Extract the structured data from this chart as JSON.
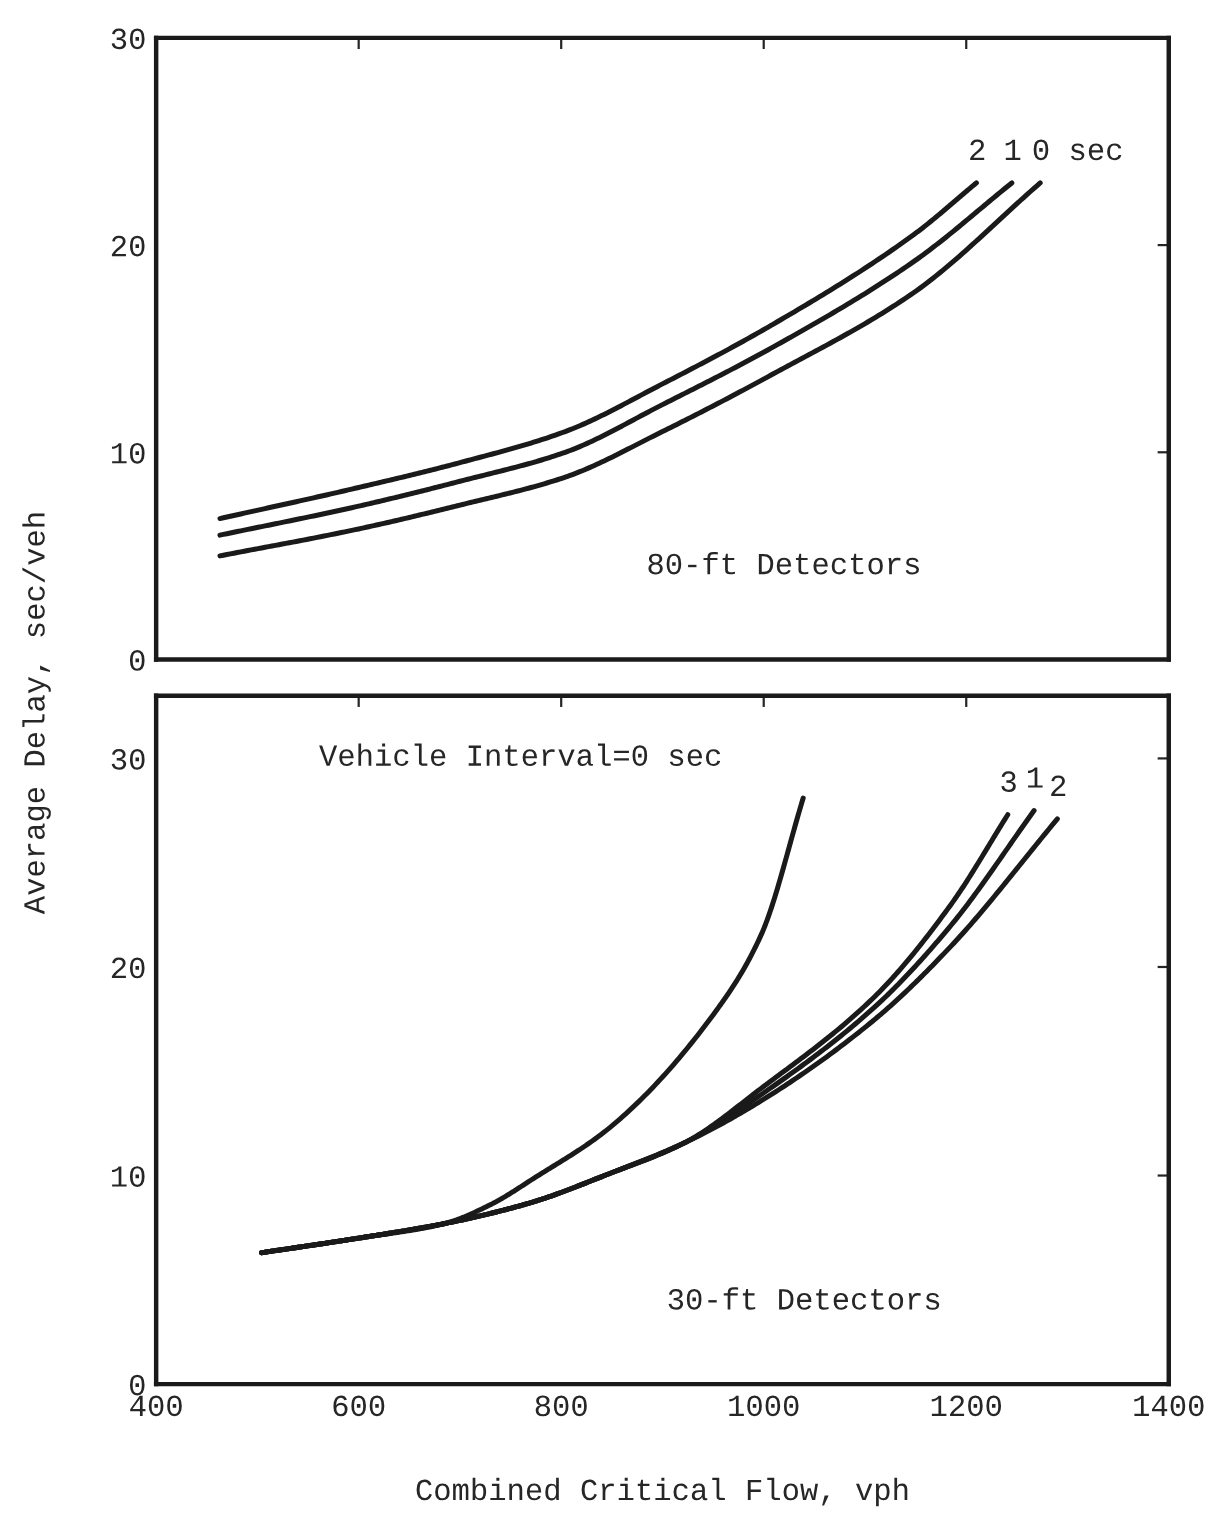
{
  "chart_data": [
    {
      "type": "line",
      "xlim": [
        400,
        1400
      ],
      "xticks": [
        400,
        600,
        800,
        1000,
        1200,
        1400
      ],
      "ylim": [
        0,
        30
      ],
      "yticks": [
        0,
        10,
        20,
        30
      ],
      "tick_labels": "y",
      "grid": false,
      "legend": false,
      "marker": "none",
      "line_style": "solid",
      "annotations": [
        "80-ft Detectors"
      ],
      "series": [
        {
          "name": "2",
          "color": "#1a1a1a",
          "x": [
            463,
            600,
            700,
            804,
            900,
            1010,
            1148,
            1210
          ],
          "values": [
            6.8,
            8.3,
            9.5,
            11.0,
            13.3,
            16.2,
            20.5,
            23.0
          ]
        },
        {
          "name": "1",
          "color": "#1a1a1a",
          "x": [
            463,
            600,
            700,
            804,
            900,
            1010,
            1148,
            1245
          ],
          "values": [
            6.0,
            7.4,
            8.6,
            10.0,
            12.3,
            15.1,
            19.2,
            23.0
          ]
        },
        {
          "name": "0 sec",
          "color": "#1a1a1a",
          "x": [
            463,
            600,
            700,
            804,
            900,
            1010,
            1148,
            1273
          ],
          "values": [
            5.0,
            6.3,
            7.45,
            8.8,
            11.0,
            13.8,
            17.7,
            23.0
          ]
        }
      ]
    },
    {
      "type": "line",
      "xlim": [
        400,
        1400
      ],
      "xticks": [
        400,
        600,
        800,
        1000,
        1200,
        1400
      ],
      "ylim": [
        0,
        33
      ],
      "yticks": [
        0,
        10,
        20,
        30
      ],
      "grid": false,
      "legend": false,
      "marker": "none",
      "line_style": "solid",
      "xlabel": "Combined Critical Flow, vph",
      "ylabel": "Average Delay, sec/veh",
      "annotations": [
        "Vehicle Interval=0 sec",
        "30-ft Detectors"
      ],
      "series": [
        {
          "color": "#1a1a1a",
          "x": [
            504,
            600,
            685,
            730,
            774,
            848,
            953,
            998,
            1039
          ],
          "values": [
            6.3,
            7.0,
            7.7,
            8.6,
            9.9,
            12.3,
            17.9,
            21.6,
            28.1
          ]
        },
        {
          "name": "3",
          "color": "#1a1a1a",
          "x": [
            504,
            600,
            685,
            770,
            848,
            923,
            998,
            1110,
            1185,
            1241
          ],
          "values": [
            6.3,
            7.0,
            7.7,
            8.7,
            10.1,
            11.6,
            14.2,
            18.6,
            23.0,
            27.3
          ]
        },
        {
          "name": "1",
          "color": "#1a1a1a",
          "x": [
            504,
            600,
            685,
            770,
            848,
            923,
            998,
            1110,
            1185,
            1267
          ],
          "values": [
            6.3,
            7.0,
            7.7,
            8.7,
            10.1,
            11.6,
            13.9,
            18.1,
            22.0,
            27.5
          ]
        },
        {
          "name": "2",
          "color": "#1a1a1a",
          "x": [
            504,
            600,
            685,
            770,
            848,
            923,
            998,
            1110,
            1185,
            1290
          ],
          "values": [
            6.3,
            7.0,
            7.7,
            8.7,
            10.1,
            11.6,
            13.6,
            17.5,
            21.0,
            27.1
          ]
        }
      ]
    }
  ]
}
